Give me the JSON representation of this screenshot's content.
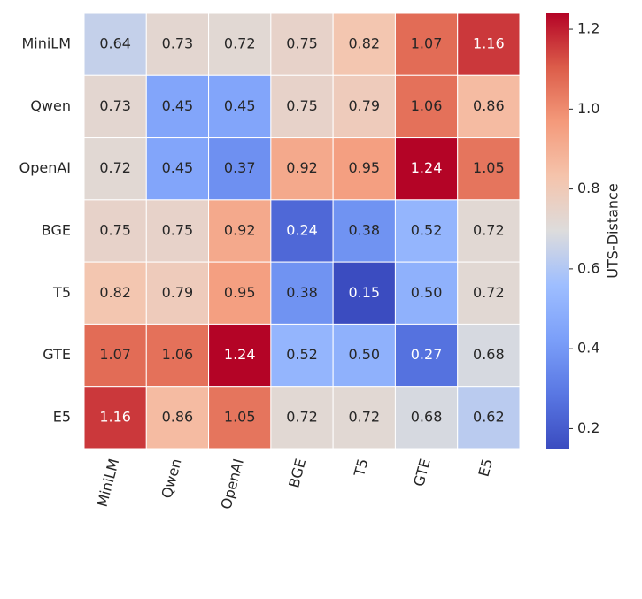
{
  "chart_data": {
    "type": "heatmap",
    "x_categories": [
      "MiniLM",
      "Qwen",
      "OpenAI",
      "BGE",
      "T5",
      "GTE",
      "E5"
    ],
    "y_categories": [
      "MiniLM",
      "Qwen",
      "OpenAI",
      "BGE",
      "T5",
      "GTE",
      "E5"
    ],
    "values": [
      [
        0.64,
        0.73,
        0.72,
        0.75,
        0.82,
        1.07,
        1.16
      ],
      [
        0.73,
        0.45,
        0.45,
        0.75,
        0.79,
        1.06,
        0.86
      ],
      [
        0.72,
        0.45,
        0.37,
        0.92,
        0.95,
        1.24,
        1.05
      ],
      [
        0.75,
        0.75,
        0.92,
        0.24,
        0.38,
        0.52,
        0.72
      ],
      [
        0.82,
        0.79,
        0.95,
        0.38,
        0.15,
        0.5,
        0.72
      ],
      [
        1.07,
        1.06,
        1.24,
        0.52,
        0.5,
        0.27,
        0.68
      ],
      [
        1.16,
        0.86,
        1.05,
        0.72,
        0.72,
        0.68,
        0.62
      ]
    ],
    "value_labels": [
      [
        "0.64",
        "0.73",
        "0.72",
        "0.75",
        "0.82",
        "1.07",
        "1.16"
      ],
      [
        "0.73",
        "0.45",
        "0.45",
        "0.75",
        "0.79",
        "1.06",
        "0.86"
      ],
      [
        "0.72",
        "0.45",
        "0.37",
        "0.92",
        "0.95",
        "1.24",
        "1.05"
      ],
      [
        "0.75",
        "0.75",
        "0.92",
        "0.24",
        "0.38",
        "0.52",
        "0.72"
      ],
      [
        "0.82",
        "0.79",
        "0.95",
        "0.38",
        "0.15",
        "0.50",
        "0.72"
      ],
      [
        "1.07",
        "1.06",
        "1.24",
        "0.52",
        "0.50",
        "0.27",
        "0.68"
      ],
      [
        "1.16",
        "0.86",
        "1.05",
        "0.72",
        "0.72",
        "0.68",
        "0.62"
      ]
    ],
    "colormap": "coolwarm",
    "zlim": [
      0.15,
      1.24
    ],
    "zticks": [
      0.2,
      0.4,
      0.6,
      0.8,
      {
        "value": 1,
        "label": "1.0"
      },
      1.2
    ],
    "colorbar_label": "UTS-Distance"
  }
}
